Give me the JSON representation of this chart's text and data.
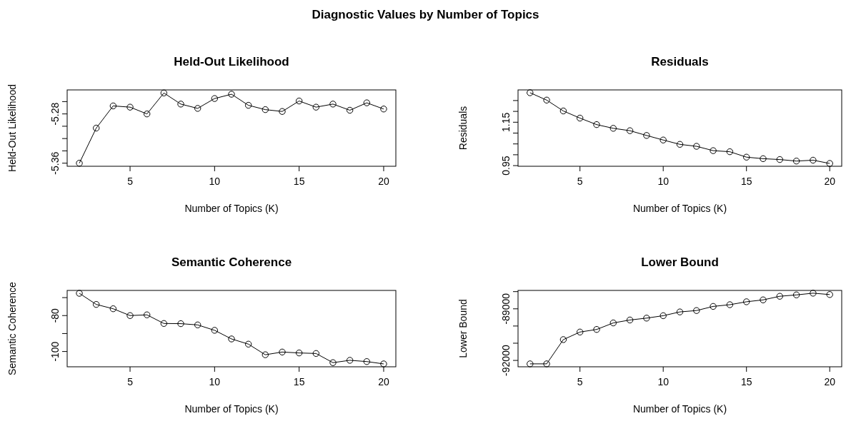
{
  "chart_data": [
    {
      "type": "other",
      "title": "Diagnostic Values by Number of Topics"
    },
    {
      "type": "line",
      "title": "Held-Out Likelihood",
      "xlabel": "Number of Topics (K)",
      "ylabel": "Held-Out Likelihood",
      "marker": "circle",
      "grid": false,
      "x": [
        2,
        3,
        4,
        5,
        6,
        7,
        8,
        9,
        10,
        11,
        12,
        13,
        14,
        15,
        16,
        17,
        18,
        19,
        20
      ],
      "series": [
        {
          "color": "#000000",
          "values": [
            -5.36,
            -5.303,
            -5.267,
            -5.269,
            -5.28,
            -5.246,
            -5.264,
            -5.271,
            -5.255,
            -5.248,
            -5.266,
            -5.273,
            -5.276,
            -5.259,
            -5.269,
            -5.264,
            -5.274,
            -5.262,
            -5.272
          ]
        }
      ],
      "xlim": [
        1.28,
        20.72
      ],
      "xticks": [
        5,
        10,
        15,
        20
      ],
      "ylim": [
        -5.365,
        -5.241
      ],
      "yticks": [
        -5.36,
        {
          "value": -5.34,
          "label": null
        },
        {
          "value": -5.32,
          "label": null
        },
        {
          "value": -5.3,
          "label": null
        },
        -5.28,
        {
          "value": -5.26,
          "label": null
        }
      ]
    },
    {
      "type": "line",
      "title": "Residuals",
      "xlabel": "Number of Topics (K)",
      "ylabel": "Residuals",
      "marker": "circle",
      "grid": false,
      "x": [
        2,
        3,
        4,
        5,
        6,
        7,
        8,
        9,
        10,
        11,
        12,
        13,
        14,
        15,
        16,
        17,
        18,
        19,
        20
      ],
      "series": [
        {
          "color": "#000000",
          "values": [
            1.286,
            1.252,
            1.202,
            1.169,
            1.139,
            1.122,
            1.111,
            1.089,
            1.068,
            1.048,
            1.039,
            1.019,
            1.014,
            0.989,
            0.982,
            0.978,
            0.971,
            0.975,
            0.96
          ]
        }
      ],
      "xlim": [
        1.28,
        20.72
      ],
      "xticks": [
        5,
        10,
        15,
        20
      ],
      "ylim": [
        0.947,
        1.299
      ],
      "yticks": [
        0.95,
        {
          "value": 1.0,
          "label": null
        },
        {
          "value": 1.05,
          "label": null
        },
        {
          "value": 1.1,
          "label": null
        },
        1.15,
        {
          "value": 1.2,
          "label": null
        },
        {
          "value": 1.25,
          "label": null
        }
      ]
    },
    {
      "type": "line",
      "title": "Semantic Coherence",
      "xlabel": "Number of Topics (K)",
      "ylabel": "Semantic Coherence",
      "marker": "circle",
      "grid": false,
      "x": [
        2,
        3,
        4,
        5,
        6,
        7,
        8,
        9,
        10,
        11,
        12,
        13,
        14,
        15,
        16,
        17,
        18,
        19,
        20
      ],
      "series": [
        {
          "color": "#000000",
          "values": [
            -67.6,
            -73.8,
            -76.2,
            -80.0,
            -79.6,
            -84.4,
            -84.5,
            -85.2,
            -88.2,
            -93.0,
            -95.9,
            -101.8,
            -100.3,
            -100.8,
            -101.1,
            -106.2,
            -104.9,
            -105.6,
            -106.9
          ]
        }
      ],
      "xlim": [
        1.28,
        20.72
      ],
      "xticks": [
        5,
        10,
        15,
        20
      ],
      "ylim": [
        -108.5,
        -66.0
      ],
      "yticks": [
        -100,
        {
          "value": -90,
          "label": null
        },
        -80,
        {
          "value": -70,
          "label": null
        }
      ]
    },
    {
      "type": "line",
      "title": "Lower Bound",
      "xlabel": "Number of Topics (K)",
      "ylabel": "Lower Bound",
      "marker": "circle",
      "grid": false,
      "x": [
        2,
        3,
        4,
        5,
        6,
        7,
        8,
        9,
        10,
        11,
        12,
        13,
        14,
        15,
        16,
        17,
        18,
        19,
        20
      ],
      "series": [
        {
          "color": "#000000",
          "values": [
            -92200,
            -92200,
            -90790,
            -90350,
            -90200,
            -89820,
            -89650,
            -89540,
            -89400,
            -89180,
            -89100,
            -88860,
            -88760,
            -88590,
            -88480,
            -88270,
            -88190,
            -88090,
            -88170
          ]
        }
      ],
      "xlim": [
        1.28,
        20.72
      ],
      "xticks": [
        5,
        10,
        15,
        20
      ],
      "ylim": [
        -92370,
        -87930
      ],
      "yticks": [
        -92000,
        {
          "value": -91000,
          "label": null
        },
        {
          "value": -90000,
          "label": null
        },
        -89000,
        {
          "value": -88000,
          "label": null
        }
      ]
    }
  ]
}
